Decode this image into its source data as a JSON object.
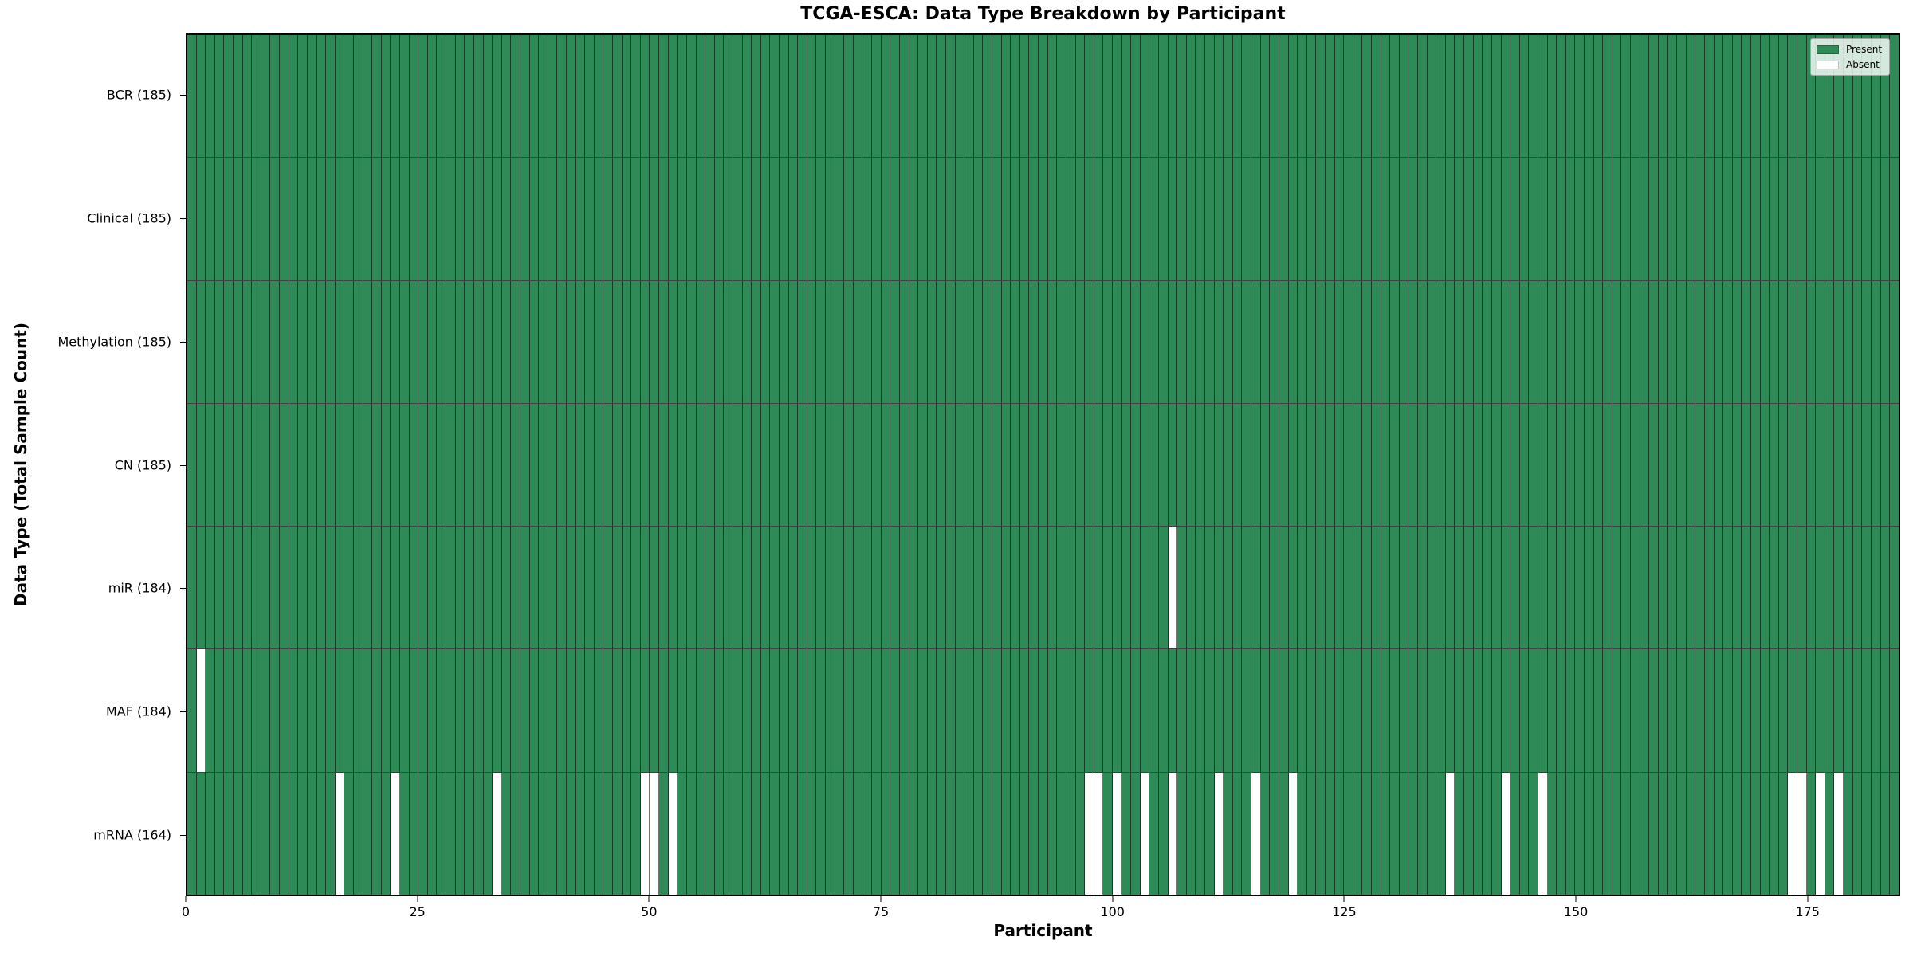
{
  "chart_data": {
    "type": "heatmap",
    "title": "TCGA-ESCA: Data Type Breakdown by Participant",
    "xlabel": "Participant",
    "ylabel": "Data Type (Total Sample Count)",
    "x_range": [
      0,
      185
    ],
    "n_participants": 185,
    "x_ticks": [
      0,
      25,
      50,
      75,
      100,
      125,
      150,
      175
    ],
    "grid": "per-participant vertical gridlines, horizontal row dividers",
    "legend_position": "upper right",
    "legend": [
      {
        "label": "Present",
        "color": "#2e8b57"
      },
      {
        "label": "Absent",
        "color": "#ffffff"
      }
    ],
    "rows": [
      {
        "label": "BCR (185)",
        "data_type": "BCR",
        "present_count": 185,
        "absent_participants": []
      },
      {
        "label": "Clinical (185)",
        "data_type": "Clinical",
        "present_count": 185,
        "absent_participants": []
      },
      {
        "label": "Methylation (185)",
        "data_type": "Methylation",
        "present_count": 185,
        "absent_participants": []
      },
      {
        "label": "CN (185)",
        "data_type": "CN",
        "present_count": 185,
        "absent_participants": []
      },
      {
        "label": "miR (184)",
        "data_type": "miR",
        "present_count": 184,
        "absent_participants": [
          106
        ]
      },
      {
        "label": "MAF (184)",
        "data_type": "MAF",
        "present_count": 184,
        "absent_participants": [
          1
        ]
      },
      {
        "label": "mRNA (164)",
        "data_type": "mRNA",
        "present_count": 164,
        "absent_participants": [
          16,
          22,
          33,
          49,
          50,
          52,
          97,
          98,
          100,
          103,
          106,
          111,
          115,
          119,
          136,
          142,
          146,
          173,
          174,
          176,
          178
        ]
      }
    ],
    "colors": {
      "present": "#2e8b57",
      "absent": "#ffffff",
      "gridline": "rgba(0,0,0,0.55)",
      "axis": "#000000"
    }
  }
}
